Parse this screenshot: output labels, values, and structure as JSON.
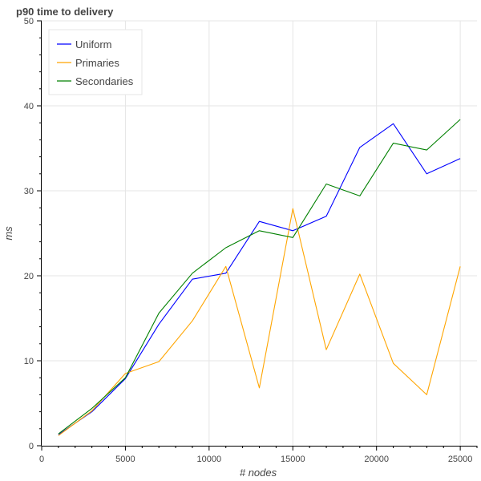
{
  "chart_data": {
    "type": "line",
    "title": "p90 time to delivery",
    "xlabel": "# nodes",
    "ylabel": "ms",
    "xlim": [
      0,
      26000
    ],
    "ylim": [
      0,
      50
    ],
    "x_ticks": [
      0,
      5000,
      10000,
      15000,
      20000,
      25000
    ],
    "y_ticks": [
      0,
      10,
      20,
      30,
      40,
      50
    ],
    "grid": true,
    "legend_position": "top-left",
    "x": [
      1000,
      3000,
      5000,
      7000,
      9000,
      11000,
      13000,
      15000,
      17000,
      19000,
      21000,
      23000,
      25000
    ],
    "series": [
      {
        "name": "Uniform",
        "color": "#0000ff",
        "values": [
          1.3,
          4.0,
          7.9,
          14.3,
          19.6,
          20.3,
          26.4,
          25.3,
          27.0,
          35.1,
          37.9,
          32.0,
          33.8
        ]
      },
      {
        "name": "Primaries",
        "color": "#ffa500",
        "values": [
          1.2,
          4.1,
          8.5,
          9.9,
          14.7,
          21.1,
          6.8,
          27.9,
          11.3,
          20.2,
          9.7,
          6.0,
          21.1
        ]
      },
      {
        "name": "Secondaries",
        "color": "#008000",
        "values": [
          1.4,
          4.4,
          8.0,
          15.6,
          20.3,
          23.3,
          25.3,
          24.5,
          30.8,
          29.4,
          35.6,
          34.8,
          38.4
        ]
      }
    ]
  }
}
